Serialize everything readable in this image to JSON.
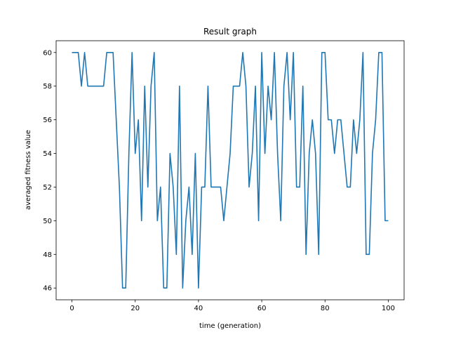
{
  "chart_data": {
    "type": "line",
    "title": "Result graph",
    "xlabel": "time (generation)",
    "ylabel": "averaged fitness value",
    "xlim": [
      -5,
      105
    ],
    "ylim": [
      45.3,
      60.7
    ],
    "xticks": [
      "0",
      "20",
      "40",
      "60",
      "80",
      "100"
    ],
    "yticks": [
      "46",
      "48",
      "50",
      "52",
      "54",
      "56",
      "58",
      "60"
    ],
    "grid": false,
    "line_color": "#1f77b4",
    "series": [
      {
        "x": [
          0,
          1,
          2,
          3,
          4,
          5,
          6,
          7,
          8,
          9,
          10,
          11,
          12,
          13,
          14,
          15,
          16,
          17,
          18,
          19,
          20,
          21,
          22,
          23,
          24,
          25,
          26,
          27,
          28,
          29,
          30,
          31,
          32,
          33,
          34,
          35,
          36,
          37,
          38,
          39,
          40,
          41,
          42,
          43,
          44,
          45,
          46,
          47,
          48,
          49,
          50,
          51,
          52,
          53,
          54,
          55,
          56,
          57,
          58,
          59,
          60,
          61,
          62,
          63,
          64,
          65,
          66,
          67,
          68,
          69,
          70,
          71,
          72,
          73,
          74,
          75,
          76,
          77,
          78,
          79,
          80,
          81,
          82,
          83,
          84,
          85,
          86,
          87,
          88,
          89,
          90,
          91,
          92,
          93,
          94,
          95,
          96,
          97,
          98,
          99,
          100
        ],
        "y": [
          60,
          60,
          60,
          58,
          60,
          58,
          58,
          58,
          58,
          58,
          58,
          60,
          60,
          60,
          56,
          52,
          46,
          46,
          54,
          60,
          54,
          56,
          50,
          58,
          52,
          58,
          60,
          50,
          52,
          46,
          46,
          54,
          52,
          48,
          58,
          46,
          50,
          52,
          48,
          54,
          46,
          52,
          52,
          58,
          52,
          52,
          52,
          52,
          50,
          52,
          54,
          58,
          58,
          58,
          60,
          58,
          52,
          54,
          58,
          50,
          60,
          54,
          58,
          56,
          60,
          54,
          50,
          58,
          60,
          56,
          60,
          52,
          52,
          58,
          48,
          54,
          56,
          54,
          48,
          60,
          60,
          56,
          56,
          54,
          56,
          56,
          54,
          52,
          52,
          56,
          54,
          56,
          60,
          48,
          48,
          54,
          56,
          60,
          60,
          50,
          50
        ]
      }
    ]
  }
}
